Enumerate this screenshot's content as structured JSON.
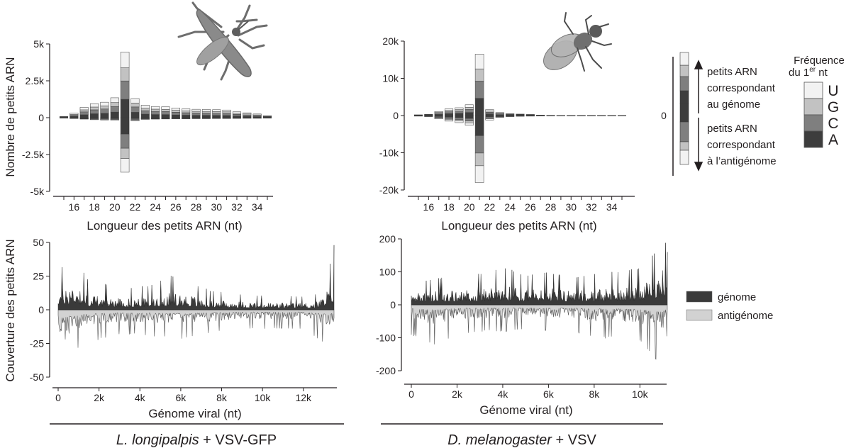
{
  "nucleotide_colors": {
    "U": "#f2f2f2",
    "G": "#c2c2c2",
    "C": "#7f7f7f",
    "A": "#3d3d3d"
  },
  "coverage_colors": {
    "genome": "#3a3a3a",
    "antigenome": "#d2d2d2"
  },
  "legend": {
    "bar_top_text": [
      "petits ARN",
      "correspondant",
      "au génome"
    ],
    "bar_bottom_text": [
      "petits ARN",
      "correspondant",
      "à l’antigénome"
    ],
    "bar_zero_label": "0",
    "freq_title_line1": "Fréquence",
    "freq_title_line2": "du 1",
    "freq_title_sup": "er",
    "freq_title_unit": " nt",
    "nucleotides": [
      "U",
      "G",
      "C",
      "A"
    ],
    "coverage_items": [
      {
        "label": "génome",
        "color": "#3a3a3a"
      },
      {
        "label": "antigénome",
        "color": "#d2d2d2"
      }
    ]
  },
  "captions": [
    {
      "species": "L. longipalpis",
      "suffix": " + VSV-GFP"
    },
    {
      "species": "D. melanogaster",
      "suffix": " + VSV"
    }
  ],
  "chart_data": [
    {
      "type": "bar",
      "panel": "size-distribution L. longipalpis",
      "xlabel": "Longueur des petits ARN (nt)",
      "ylabel": "Nombre de petits ARN",
      "x": [
        15,
        16,
        17,
        18,
        19,
        20,
        21,
        22,
        23,
        24,
        25,
        26,
        27,
        28,
        29,
        30,
        31,
        32,
        33,
        34,
        35
      ],
      "xticks": [
        16,
        18,
        20,
        22,
        24,
        26,
        28,
        30,
        32,
        34
      ],
      "yticks": [
        -5000,
        -2500,
        0,
        2500,
        5000
      ],
      "ytick_labels": [
        "-5k",
        "-2.5k",
        "0",
        "2.5k",
        "5k"
      ],
      "ylim": [
        -5000,
        5000
      ],
      "nucleotide_order_outward": [
        "A",
        "C",
        "G",
        "U"
      ],
      "genome_totals": [
        80,
        300,
        700,
        950,
        1050,
        1350,
        4450,
        1300,
        850,
        760,
        740,
        660,
        600,
        570,
        560,
        540,
        520,
        400,
        330,
        250,
        130
      ],
      "antigenome_totals": [
        -30,
        -60,
        -100,
        -140,
        -160,
        -170,
        -3700,
        -220,
        -120,
        -100,
        -90,
        -80,
        -80,
        -70,
        -70,
        -60,
        -60,
        -50,
        -40,
        -40,
        -30
      ],
      "genome_fractions": {
        "A": 0.28,
        "C": 0.28,
        "G": 0.2,
        "U": 0.24
      },
      "antigenome_fractions": {
        "A": 0.3,
        "C": 0.26,
        "G": 0.19,
        "U": 0.25
      }
    },
    {
      "type": "bar",
      "panel": "size-distribution D. melanogaster",
      "xlabel": "Longueur des petits ARN (nt)",
      "ylabel": "",
      "x": [
        15,
        16,
        17,
        18,
        19,
        20,
        21,
        22,
        23,
        24,
        25,
        26,
        27,
        28,
        29,
        30,
        31,
        32,
        33,
        34,
        35
      ],
      "xticks": [
        16,
        18,
        20,
        22,
        24,
        26,
        28,
        30,
        32,
        34
      ],
      "yticks": [
        -20000,
        -10000,
        0,
        10000,
        20000
      ],
      "ytick_labels": [
        "-20k",
        "-10k",
        "0",
        "10k",
        "20k"
      ],
      "ylim": [
        -20000,
        20000
      ],
      "nucleotide_order_outward": [
        "A",
        "C",
        "G",
        "U"
      ],
      "genome_totals": [
        200,
        350,
        1100,
        1800,
        2100,
        2900,
        16500,
        1600,
        800,
        500,
        400,
        300,
        120,
        60,
        40,
        30,
        30,
        30,
        30,
        30,
        30
      ],
      "antigenome_totals": [
        -150,
        -300,
        -900,
        -1500,
        -1900,
        -2600,
        -18000,
        -1200,
        -500,
        -300,
        -200,
        -150,
        -80,
        -50,
        -30,
        -30,
        -30,
        -30,
        -30,
        -30,
        -30
      ],
      "genome_fractions": {
        "A": 0.28,
        "C": 0.28,
        "G": 0.2,
        "U": 0.24
      },
      "antigenome_fractions": {
        "A": 0.3,
        "C": 0.26,
        "G": 0.19,
        "U": 0.25
      }
    },
    {
      "type": "area",
      "panel": "coverage L. longipalpis",
      "xlabel": "Génome viral (nt)",
      "ylabel": "Couverture des petits ARN",
      "xlim": [
        0,
        13500
      ],
      "xticks": [
        0,
        2000,
        4000,
        6000,
        8000,
        10000,
        12000
      ],
      "xtick_labels": [
        "0",
        "2k",
        "4k",
        "6k",
        "8k",
        "10k",
        "12k"
      ],
      "yticks": [
        -50,
        -25,
        0,
        25,
        50
      ],
      "ylim": [
        -52,
        52
      ],
      "series": [
        {
          "name": "génome",
          "profile_x": [
            0,
            500,
            800,
            1500,
            2500,
            3500,
            4500,
            5500,
            6500,
            7500,
            8500,
            9500,
            10500,
            11500,
            12500,
            13000,
            13400,
            13500
          ],
          "profile_max_y": [
            30,
            35,
            40,
            22,
            18,
            16,
            18,
            25,
            20,
            14,
            12,
            11,
            10,
            10,
            10,
            18,
            40,
            48
          ]
        },
        {
          "name": "antigénome",
          "profile_x": [
            0,
            300,
            500,
            1000,
            2000,
            3000,
            4000,
            5000,
            6000,
            7000,
            8000,
            9000,
            10000,
            11000,
            12000,
            13000,
            13500
          ],
          "profile_min_y": [
            -30,
            -50,
            -38,
            -28,
            -22,
            -18,
            -18,
            -20,
            -22,
            -18,
            -16,
            -14,
            -14,
            -14,
            -14,
            -25,
            -20
          ]
        }
      ]
    },
    {
      "type": "area",
      "panel": "coverage D. melanogaster",
      "xlabel": "Génome viral (nt)",
      "ylabel": "",
      "xlim": [
        0,
        11200
      ],
      "xticks": [
        0,
        2000,
        4000,
        6000,
        8000,
        10000
      ],
      "xtick_labels": [
        "0",
        "2k",
        "4k",
        "6k",
        "8k",
        "10k"
      ],
      "yticks": [
        -200,
        -100,
        0,
        100,
        200
      ],
      "ylim": [
        -230,
        235
      ],
      "series": [
        {
          "name": "génome",
          "profile_x": [
            0,
            1000,
            2000,
            3000,
            4000,
            5000,
            6000,
            7000,
            8000,
            9000,
            10000,
            10800,
            11000,
            11200
          ],
          "profile_max_y": [
            65,
            80,
            85,
            95,
            115,
            90,
            100,
            80,
            95,
            100,
            110,
            175,
            225,
            160
          ]
        },
        {
          "name": "antigénome",
          "profile_x": [
            0,
            1000,
            2000,
            3000,
            4000,
            5000,
            6000,
            7000,
            8000,
            9000,
            10000,
            10800,
            11000,
            11200
          ],
          "profile_min_y": [
            -90,
            -120,
            -90,
            -80,
            -80,
            -75,
            -80,
            -80,
            -100,
            -100,
            -110,
            -170,
            -160,
            -90
          ]
        }
      ]
    }
  ]
}
